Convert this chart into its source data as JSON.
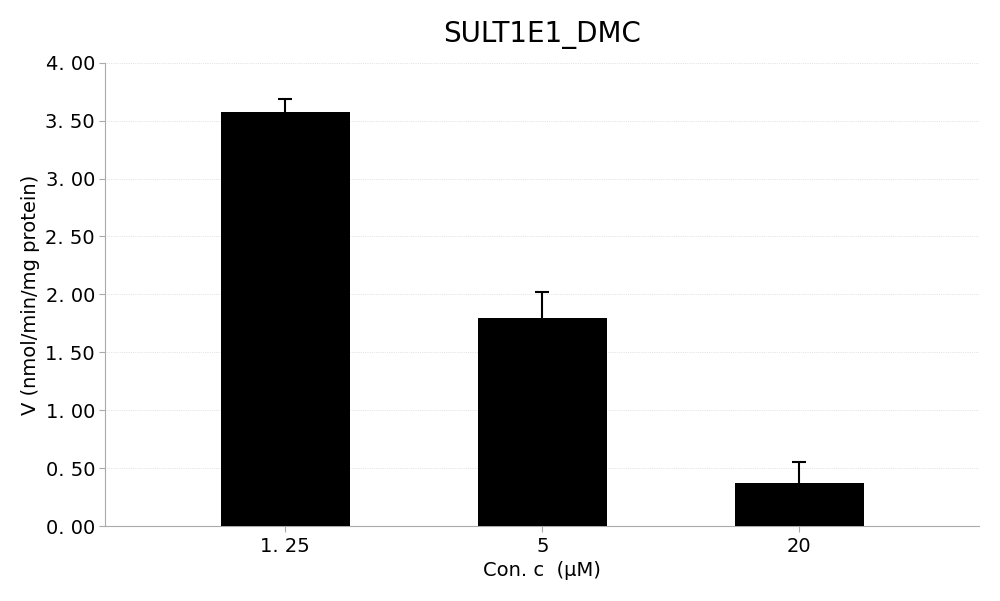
{
  "title": "SULT1E1_DMC",
  "categories": [
    "1. 25",
    "5",
    "20"
  ],
  "values": [
    3.57,
    1.8,
    0.37
  ],
  "errors": [
    0.12,
    0.22,
    0.18
  ],
  "bar_color": "#000000",
  "bar_width": 0.5,
  "xlabel": "Con. c  (μM)",
  "ylabel": "V (nmol/min/mg protein)",
  "ylim": [
    0,
    4.0
  ],
  "ytick_labels": [
    "0. 00",
    "0. 50",
    "1. 00",
    "1. 50",
    "2. 00",
    "2. 50",
    "3. 00",
    "3. 50",
    "4. 00"
  ],
  "ytick_values": [
    0.0,
    0.5,
    1.0,
    1.5,
    2.0,
    2.5,
    3.0,
    3.5,
    4.0
  ],
  "title_fontsize": 20,
  "label_fontsize": 14,
  "tick_fontsize": 14,
  "background_color": "#ffffff",
  "figure_background": "#ffffff",
  "capsize": 5,
  "ecolor": "#000000",
  "elinewidth": 1.5
}
